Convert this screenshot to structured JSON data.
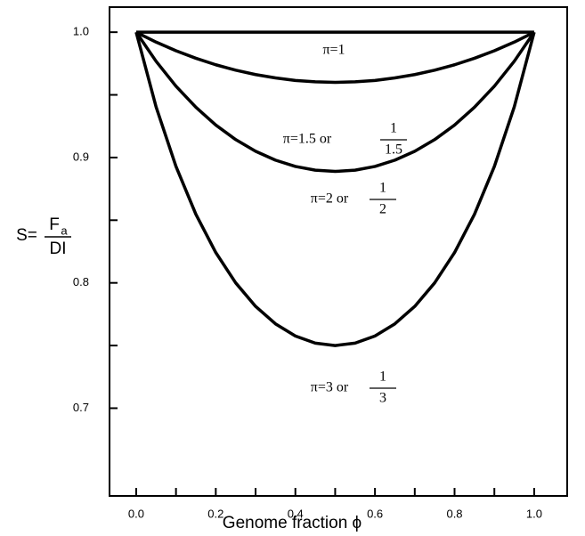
{
  "chart_data": {
    "type": "line",
    "x_label": "Genome fraction ϕ",
    "y_label": {
      "prefix": "S=",
      "numerator": "F",
      "subscript": "a",
      "denominator": "DI"
    },
    "x": [
      0,
      0.05,
      0.1,
      0.15,
      0.2,
      0.25,
      0.3,
      0.35,
      0.4,
      0.45,
      0.5,
      0.55,
      0.6,
      0.65,
      0.7,
      0.75,
      0.8,
      0.85,
      0.9,
      0.95,
      1
    ],
    "series": [
      {
        "color": "#000000",
        "values": [
          1,
          1,
          1,
          1,
          1,
          1,
          1,
          1,
          1,
          1,
          1,
          1,
          1,
          1,
          1,
          1,
          1,
          1,
          1,
          1,
          1
        ]
      },
      {
        "color": "#000000",
        "values": [
          1,
          0.9921,
          0.9852,
          0.9792,
          0.974,
          0.9697,
          0.9662,
          0.9635,
          0.9615,
          0.9604,
          0.96,
          0.9604,
          0.9615,
          0.9635,
          0.9662,
          0.9697,
          0.974,
          0.9792,
          0.9852,
          0.9921,
          1
        ]
      },
      {
        "color": "#000000",
        "values": [
          1,
          0.9768,
          0.9569,
          0.9401,
          0.9259,
          0.9143,
          0.905,
          0.8979,
          0.8929,
          0.8899,
          0.8889,
          0.8899,
          0.8929,
          0.8979,
          0.905,
          0.9143,
          0.9259,
          0.9401,
          0.9569,
          0.9768,
          1
        ]
      },
      {
        "color": "#000000",
        "values": [
          1,
          0.9404,
          0.8929,
          0.8547,
          0.8242,
          0.8,
          0.78125,
          0.7673,
          0.7576,
          0.7519,
          0.75,
          0.7519,
          0.7576,
          0.7673,
          0.78125,
          0.8,
          0.8242,
          0.8547,
          0.8929,
          0.9404,
          1
        ]
      }
    ],
    "annotations": [
      {
        "text": "π=1"
      },
      {
        "text": "π=1.5  or",
        "numerator": "1",
        "denominator": "1.5"
      },
      {
        "text": "π=2  or",
        "numerator": "1",
        "denominator": "2"
      },
      {
        "text": "π=3  or",
        "numerator": "1",
        "denominator": "3"
      }
    ],
    "xlim": [
      -0.067,
      1.083
    ],
    "ylim": [
      0.63,
      1.02
    ],
    "xticks": [
      {
        "value": 0,
        "label": "0.0"
      },
      0.2,
      0.4,
      0.6,
      0.8,
      {
        "value": 1,
        "label": "1.0"
      }
    ],
    "xminor": [
      0.1,
      0.3,
      0.5,
      0.7,
      0.9
    ],
    "yticks": [
      {
        "value": 0.7,
        "label": "0.7"
      },
      0.8,
      0.9,
      {
        "value": 1,
        "label": "1.0"
      }
    ],
    "yminor": [
      0.75,
      0.85,
      0.95
    ],
    "grid": false
  }
}
